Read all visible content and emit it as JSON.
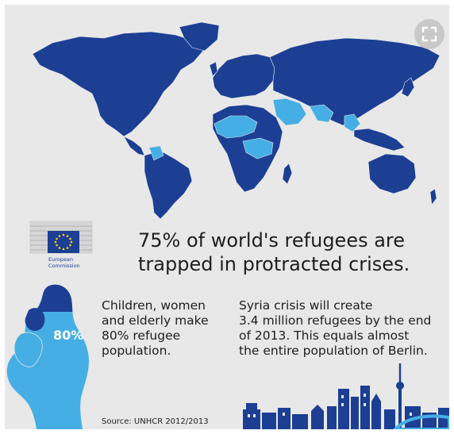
{
  "colors": {
    "background": "#e8e8e8",
    "dark_blue": "#1c3f94",
    "light_blue": "#45aee4",
    "text": "#1e1e1e"
  },
  "icons": {
    "expand": "expand-icon",
    "logo": "european-commission-logo"
  },
  "logo": {
    "line1": "European",
    "line2": "Commission"
  },
  "headline": {
    "line1": "75% of world's refugees are",
    "line2": "trapped in protracted crises."
  },
  "figure": {
    "percent_label": "80%",
    "fill_fraction": 0.8
  },
  "stat_left": {
    "line1": "Children, women",
    "line2": "and elderly make",
    "line3": "80% refugee",
    "line4": "population."
  },
  "stat_right": {
    "line1": "Syria crisis will create",
    "line2": "3.4 million refugees by the end",
    "line3": "of 2013. This equals almost",
    "line4": "the entire population of Berlin."
  },
  "source": "Source: UNHCR 2012/2013"
}
